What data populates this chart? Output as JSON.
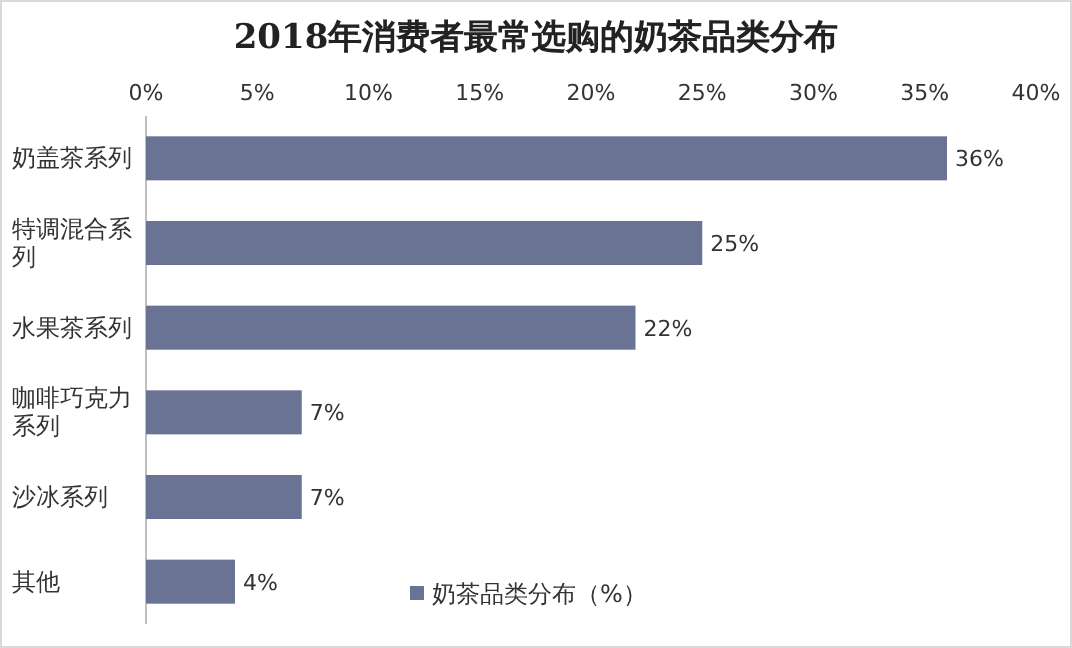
{
  "chart_data": {
    "type": "bar",
    "orientation": "horizontal",
    "title": "2018年消费者最常选购的奶茶品类分布",
    "categories": [
      "奶盖茶系列",
      "特调混合系列",
      "水果茶系列",
      "咖啡巧克力系列",
      "沙冰系列",
      "其他"
    ],
    "series": [
      {
        "name": "奶茶品类分布（%）",
        "color": "#6b7394",
        "values": [
          36,
          25,
          22,
          7,
          7,
          4
        ],
        "value_labels": [
          "36%",
          "25%",
          "22%",
          "7%",
          "7%",
          "4%"
        ]
      }
    ],
    "xlim": [
      0,
      40
    ],
    "xticks": [
      {
        "value": 0,
        "label": "0%"
      },
      {
        "value": 5,
        "label": "5%"
      },
      {
        "value": 10,
        "label": "10%"
      },
      {
        "value": 15,
        "label": "15%"
      },
      {
        "value": 20,
        "label": "20%"
      },
      {
        "value": 25,
        "label": "25%"
      },
      {
        "value": 30,
        "label": "30%"
      },
      {
        "value": 35,
        "label": "35%"
      },
      {
        "value": 40,
        "label": "40%"
      }
    ],
    "grid": false,
    "legend": "bottom"
  }
}
